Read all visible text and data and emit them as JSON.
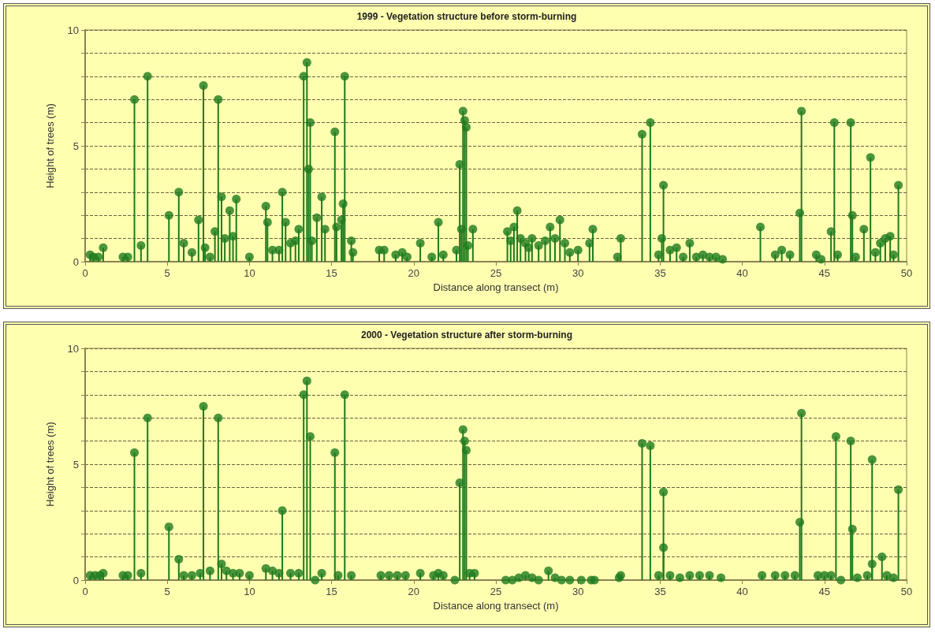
{
  "chart_data": [
    {
      "type": "lollipop",
      "title": "1999 - Vegetation structure before storm-burning",
      "xlabel": "Distance along transect (m)",
      "ylabel": "Height of trees (m)",
      "color": "#1e7a1e",
      "marker": "circle",
      "grid": "y",
      "x": [
        0.3,
        0.5,
        0.8,
        1.1,
        2.3,
        2.6,
        3.0,
        3.4,
        3.8,
        5.1,
        5.7,
        6.0,
        6.5,
        6.9,
        7.2,
        7.3,
        7.6,
        7.9,
        8.1,
        8.3,
        8.5,
        8.8,
        9.0,
        9.2,
        10.0,
        11.0,
        11.1,
        11.4,
        11.8,
        12.0,
        12.2,
        12.5,
        12.8,
        13.0,
        13.3,
        13.5,
        13.6,
        13.7,
        13.8,
        14.1,
        14.4,
        14.6,
        15.2,
        15.3,
        15.6,
        15.7,
        15.8,
        16.2,
        16.3,
        17.9,
        18.2,
        18.9,
        19.3,
        19.6,
        20.4,
        21.1,
        21.5,
        21.8,
        22.6,
        22.8,
        22.9,
        23.0,
        23.1,
        23.2,
        23.3,
        23.6,
        25.7,
        25.9,
        26.1,
        26.3,
        26.5,
        26.8,
        27.0,
        27.2,
        27.6,
        28.0,
        28.3,
        28.6,
        28.9,
        29.2,
        29.5,
        30.0,
        30.7,
        30.9,
        32.4,
        32.6,
        33.9,
        34.4,
        34.9,
        35.1,
        35.2,
        35.6,
        36.0,
        36.4,
        36.8,
        37.2,
        37.6,
        38.0,
        38.4,
        38.8,
        41.1,
        42.0,
        42.4,
        42.9,
        43.5,
        43.6,
        44.5,
        44.8,
        45.4,
        45.6,
        45.8,
        46.6,
        46.7,
        46.9,
        47.4,
        47.8,
        48.1,
        48.4,
        48.7,
        49.0,
        49.2,
        49.5
      ],
      "values": [
        0.3,
        0.2,
        0.2,
        0.6,
        0.2,
        0.2,
        7.0,
        0.7,
        8.0,
        2.0,
        3.0,
        0.8,
        0.4,
        1.8,
        7.6,
        0.6,
        0.2,
        1.3,
        7.0,
        2.8,
        1.0,
        2.2,
        1.1,
        2.7,
        0.2,
        2.4,
        1.7,
        0.5,
        0.5,
        3.0,
        1.7,
        0.8,
        0.9,
        1.4,
        8.0,
        8.6,
        4.0,
        6.0,
        0.9,
        1.9,
        2.8,
        1.4,
        5.6,
        1.5,
        1.8,
        2.5,
        8.0,
        0.9,
        0.4,
        0.5,
        0.5,
        0.3,
        0.4,
        0.2,
        0.8,
        0.2,
        1.7,
        0.3,
        0.5,
        4.2,
        1.4,
        6.5,
        6.1,
        5.8,
        0.7,
        1.4,
        1.3,
        0.9,
        1.5,
        2.2,
        1.0,
        0.8,
        0.6,
        1.0,
        0.7,
        0.9,
        1.5,
        1.0,
        1.8,
        0.8,
        0.4,
        0.5,
        0.8,
        1.4,
        0.2,
        1.0,
        5.5,
        6.0,
        0.3,
        1.0,
        3.3,
        0.5,
        0.6,
        0.2,
        0.8,
        0.2,
        0.3,
        0.2,
        0.2,
        0.1,
        1.5,
        0.3,
        0.5,
        0.3,
        2.1,
        6.5,
        0.3,
        0.1,
        1.3,
        6.0,
        0.3,
        6.0,
        2.0,
        0.2,
        1.4,
        4.5,
        0.4,
        0.8,
        1.0,
        1.1,
        0.3,
        3.3
      ],
      "xlim": [
        0,
        50
      ],
      "xticks": [
        0,
        5,
        10,
        15,
        20,
        25,
        30,
        35,
        40,
        45,
        50
      ],
      "ylim": [
        0,
        10
      ],
      "yticks": [
        0,
        {
          "value": 1,
          "label": null
        },
        {
          "value": 2,
          "label": null
        },
        {
          "value": 3,
          "label": null
        },
        {
          "value": 4,
          "label": null
        },
        5,
        {
          "value": 6,
          "label": null
        },
        {
          "value": 7,
          "label": null
        },
        {
          "value": 8,
          "label": null
        },
        {
          "value": 9,
          "label": null
        },
        10
      ]
    },
    {
      "type": "lollipop",
      "title": "2000 - Vegetation structure after storm-burning",
      "xlabel": "Distance along transect (m)",
      "ylabel": "Height of trees (m)",
      "color": "#1e7a1e",
      "marker": "circle",
      "grid": "y",
      "x": [
        0.3,
        0.6,
        0.9,
        1.1,
        2.3,
        2.6,
        3.0,
        3.4,
        3.8,
        5.1,
        5.7,
        6.0,
        6.5,
        7.0,
        7.2,
        7.6,
        8.1,
        8.3,
        8.6,
        9.0,
        9.4,
        10.0,
        11.0,
        11.4,
        11.8,
        12.0,
        12.5,
        13.0,
        13.3,
        13.5,
        13.7,
        14.0,
        14.4,
        15.2,
        15.4,
        15.8,
        16.2,
        18.0,
        18.5,
        19.0,
        19.5,
        20.4,
        21.2,
        21.5,
        21.8,
        22.5,
        22.8,
        23.0,
        23.1,
        23.2,
        23.4,
        23.7,
        25.6,
        26.0,
        26.4,
        26.8,
        27.2,
        27.6,
        28.2,
        28.6,
        29.0,
        29.5,
        30.2,
        30.8,
        31.0,
        32.5,
        32.6,
        33.9,
        34.4,
        34.9,
        35.2,
        35.2,
        35.6,
        36.2,
        36.8,
        37.4,
        38.0,
        38.7,
        41.2,
        42.0,
        42.6,
        43.2,
        43.5,
        43.6,
        44.6,
        45.0,
        45.4,
        45.7,
        46.0,
        46.6,
        46.7,
        47.0,
        47.6,
        47.9,
        47.9,
        48.5,
        48.8,
        49.2,
        49.5
      ],
      "values": [
        0.2,
        0.2,
        0.2,
        0.3,
        0.2,
        0.2,
        5.5,
        0.3,
        7.0,
        2.3,
        0.9,
        0.2,
        0.2,
        0.3,
        7.5,
        0.4,
        7.0,
        0.7,
        0.4,
        0.3,
        0.3,
        0.2,
        0.5,
        0.4,
        0.3,
        3.0,
        0.3,
        0.3,
        8.0,
        8.6,
        6.2,
        0.0,
        0.3,
        5.5,
        0.2,
        8.0,
        0.2,
        0.2,
        0.2,
        0.2,
        0.2,
        0.3,
        0.2,
        0.3,
        0.2,
        0.0,
        4.2,
        6.5,
        6.0,
        5.6,
        0.3,
        0.3,
        0.0,
        0.0,
        0.1,
        0.2,
        0.1,
        0.0,
        0.4,
        0.1,
        0.0,
        0.0,
        0.0,
        0.0,
        0.0,
        0.1,
        0.2,
        5.9,
        5.8,
        0.2,
        1.4,
        3.8,
        0.2,
        0.1,
        0.2,
        0.2,
        0.2,
        0.1,
        0.2,
        0.2,
        0.2,
        0.2,
        2.5,
        7.2,
        0.2,
        0.2,
        0.2,
        6.2,
        0.0,
        6.0,
        2.2,
        0.1,
        0.2,
        0.7,
        5.2,
        1.0,
        0.2,
        0.1,
        3.9
      ],
      "xlim": [
        0,
        50
      ],
      "xticks": [
        0,
        5,
        10,
        15,
        20,
        25,
        30,
        35,
        40,
        45,
        50
      ],
      "ylim": [
        0,
        10
      ],
      "yticks": [
        0,
        {
          "value": 1,
          "label": null
        },
        {
          "value": 2,
          "label": null
        },
        {
          "value": 3,
          "label": null
        },
        {
          "value": 4,
          "label": null
        },
        5,
        {
          "value": 6,
          "label": null
        },
        {
          "value": 7,
          "label": null
        },
        {
          "value": 8,
          "label": null
        },
        {
          "value": 9,
          "label": null
        },
        10
      ]
    }
  ]
}
